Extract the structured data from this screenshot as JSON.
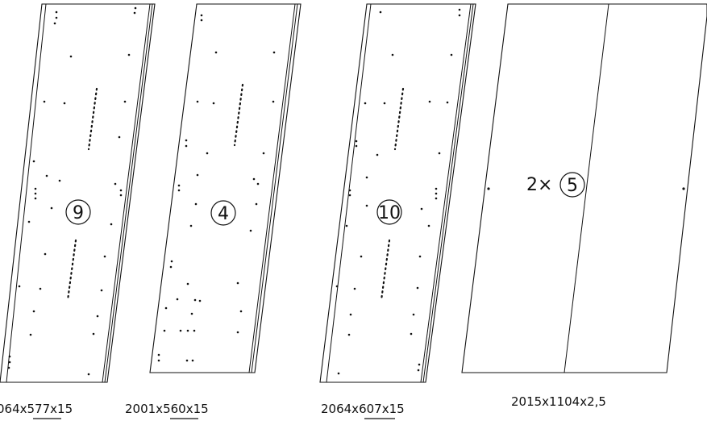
{
  "panels": [
    {
      "id": "panel-9",
      "label": "9",
      "dim_prefix": "064x",
      "dim_highlight": "577",
      "dim_suffix": "x15"
    },
    {
      "id": "panel-4",
      "label": "4",
      "dim_prefix": "2001x",
      "dim_highlight": "560",
      "dim_suffix": "x15"
    },
    {
      "id": "panel-10",
      "label": "10",
      "dim_prefix": "2064x",
      "dim_highlight": "607",
      "dim_suffix": "x15"
    },
    {
      "id": "panel-5",
      "qty": "2×",
      "label": "5",
      "dim": "2015x1104x2,5"
    }
  ]
}
